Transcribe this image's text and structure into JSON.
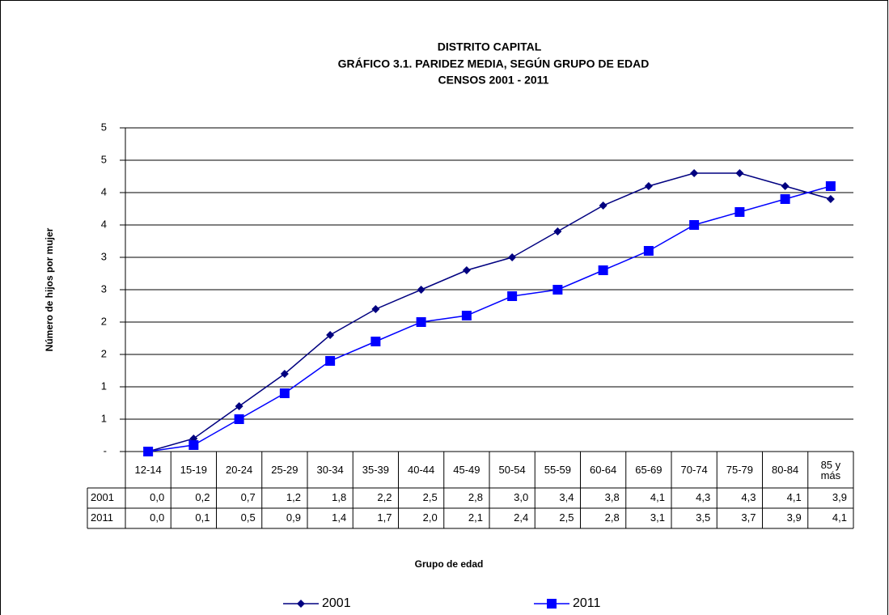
{
  "chart_data": {
    "type": "line",
    "title_lines": [
      "DISTRITO CAPITAL",
      "GRÁFICO 3.1. PARIDEZ MEDIA, SEGÚN GRUPO DE EDAD",
      "CENSOS 2001 - 2011"
    ],
    "x_label": "Grupo de edad",
    "y_label": "Número de hijos por mujer",
    "categories": [
      "12-14",
      "15-19",
      "20-24",
      "25-29",
      "30-34",
      "35-39",
      "40-44",
      "45-49",
      "50-54",
      "55-59",
      "60-64",
      "65-69",
      "70-74",
      "75-79",
      "80-84",
      "85 y más"
    ],
    "series": [
      {
        "name": "2001",
        "color": "#000080",
        "marker": "diamond",
        "values": [
          0.0,
          0.2,
          0.7,
          1.2,
          1.8,
          2.2,
          2.5,
          2.8,
          3.0,
          3.4,
          3.8,
          4.1,
          4.3,
          4.3,
          4.1,
          3.9
        ],
        "value_labels": [
          "0,0",
          "0,2",
          "0,7",
          "1,2",
          "1,8",
          "2,2",
          "2,5",
          "2,8",
          "3,0",
          "3,4",
          "3,8",
          "4,1",
          "4,3",
          "4,3",
          "4,1",
          "3,9"
        ]
      },
      {
        "name": "2011",
        "color": "#0000ff",
        "marker": "square",
        "values": [
          0.0,
          0.1,
          0.5,
          0.9,
          1.4,
          1.7,
          2.0,
          2.1,
          2.4,
          2.5,
          2.8,
          3.1,
          3.5,
          3.7,
          3.9,
          4.1
        ],
        "value_labels": [
          "0,0",
          "0,1",
          "0,5",
          "0,9",
          "1,4",
          "1,7",
          "2,0",
          "2,1",
          "2,4",
          "2,5",
          "2,8",
          "3,1",
          "3,5",
          "3,7",
          "3,9",
          "4,1"
        ]
      }
    ],
    "ylim": [
      0,
      5
    ],
    "yticks": [
      {
        "value": 0,
        "label": "-"
      },
      {
        "value": 0.5,
        "label": "1"
      },
      1,
      {
        "value": 1.5,
        "label": "2"
      },
      2,
      {
        "value": 2.5,
        "label": "3"
      },
      3,
      {
        "value": 3.5,
        "label": "4"
      },
      4,
      {
        "value": 4.5,
        "label": "5"
      },
      5
    ],
    "grid": true,
    "legend": "bottom"
  }
}
